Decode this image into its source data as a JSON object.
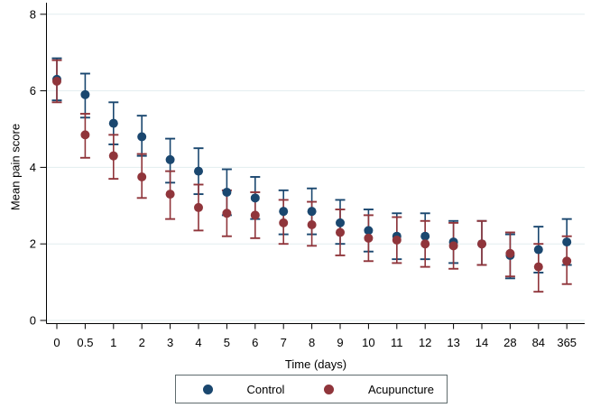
{
  "figure": {
    "background": "#ffffff"
  },
  "chart_data": {
    "type": "scatter",
    "subtype": "point-estimates-with-error-bars",
    "title": "",
    "xlabel": "Time (days)",
    "ylabel": "Mean pain score",
    "categories": [
      "0",
      "0.5",
      "1",
      "2",
      "3",
      "4",
      "5",
      "6",
      "7",
      "8",
      "9",
      "10",
      "11",
      "12",
      "13",
      "14",
      "28",
      "84",
      "365"
    ],
    "ylim": [
      0,
      8
    ],
    "yticks": [
      0,
      2,
      4,
      6,
      8
    ],
    "grid": true,
    "legend_position": "bottom",
    "series": [
      {
        "name": "Control",
        "color": "#1a476f",
        "means": [
          6.3,
          5.9,
          5.15,
          4.8,
          4.2,
          3.9,
          3.35,
          3.2,
          2.85,
          2.85,
          2.55,
          2.35,
          2.2,
          2.2,
          2.05,
          2.0,
          1.7,
          1.85,
          2.05
        ],
        "ci_low": [
          5.75,
          5.3,
          4.6,
          4.3,
          3.6,
          3.3,
          2.75,
          2.65,
          2.25,
          2.25,
          2.0,
          1.8,
          1.6,
          1.6,
          1.5,
          1.45,
          1.1,
          1.25,
          1.45
        ],
        "ci_high": [
          6.85,
          6.45,
          5.7,
          5.35,
          4.75,
          4.5,
          3.95,
          3.75,
          3.4,
          3.45,
          3.15,
          2.9,
          2.8,
          2.8,
          2.6,
          2.6,
          2.25,
          2.45,
          2.65
        ]
      },
      {
        "name": "Acupuncture",
        "color": "#90353b",
        "means": [
          6.25,
          4.85,
          4.3,
          3.75,
          3.3,
          2.95,
          2.8,
          2.75,
          2.55,
          2.5,
          2.3,
          2.15,
          2.1,
          2.0,
          1.95,
          2.0,
          1.75,
          1.4,
          1.55
        ],
        "ci_low": [
          5.7,
          4.25,
          3.7,
          3.2,
          2.65,
          2.35,
          2.2,
          2.15,
          2.0,
          1.95,
          1.7,
          1.55,
          1.5,
          1.4,
          1.35,
          1.45,
          1.15,
          0.75,
          0.95
        ],
        "ci_high": [
          6.8,
          5.4,
          4.85,
          4.35,
          3.9,
          3.55,
          3.4,
          3.35,
          3.15,
          3.1,
          2.9,
          2.75,
          2.7,
          2.6,
          2.55,
          2.6,
          2.3,
          2.0,
          2.2
        ]
      }
    ]
  },
  "legend": {
    "items": [
      {
        "label": "Control",
        "color": "#1a476f"
      },
      {
        "label": "Acupuncture",
        "color": "#90353b"
      }
    ]
  },
  "colors": {
    "control": "#1a476f",
    "acupuncture": "#90353b",
    "gridline": "#e2edef",
    "axis": "#000000",
    "legend_border": "#5f6b6d",
    "background": "#ffffff"
  }
}
